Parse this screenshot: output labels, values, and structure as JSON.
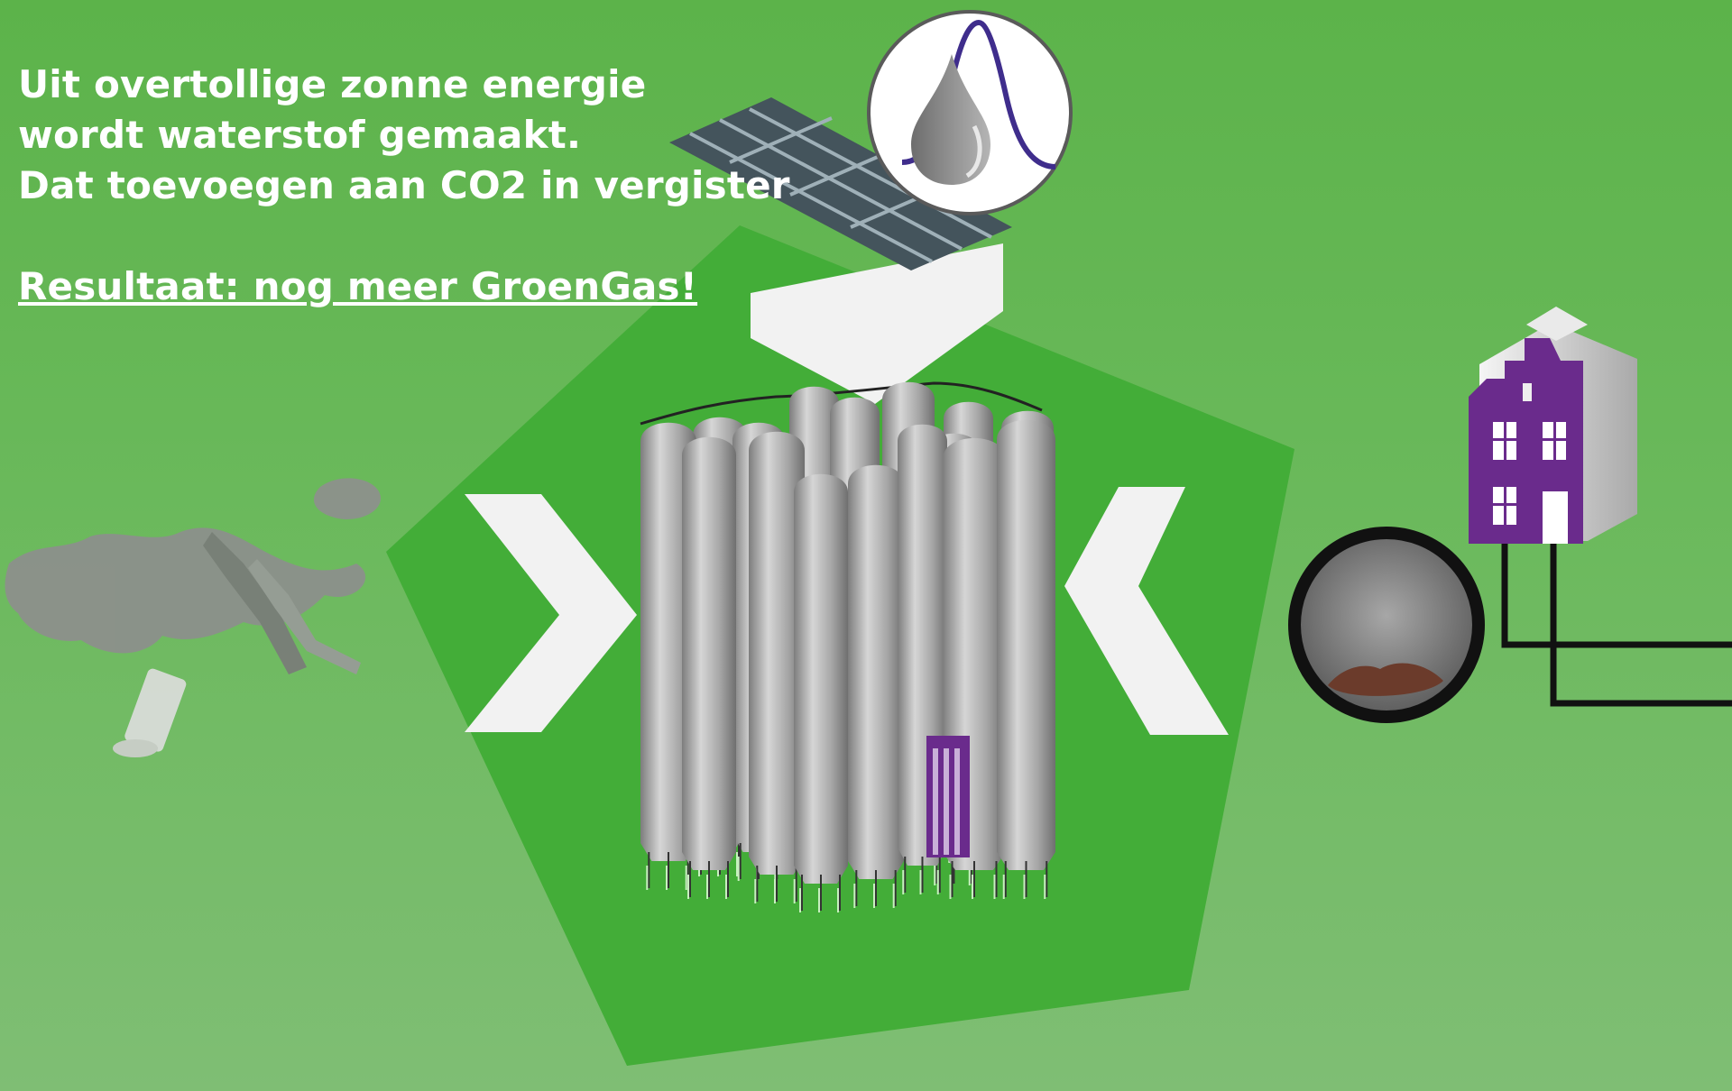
{
  "text": {
    "line1": "Uit overtollige zonne energie",
    "line2": "wordt waterstof gemaakt.",
    "line3": "Dat toevoegen aan CO2 in vergister",
    "result": "Resultaat: nog meer GroenGas!"
  },
  "colors": {
    "background": "#62b552",
    "pentagon": "#43ad38",
    "silo": "#a9a9a9",
    "house": "#6a2b8c",
    "arrow": "#f2f2f2",
    "pipe": "#111111"
  },
  "icons": [
    "solar-panel-icon",
    "hydrogen-droplet-icon",
    "digester-silos-icon",
    "house-icon",
    "gas-pipe-icon",
    "waste-icon"
  ]
}
